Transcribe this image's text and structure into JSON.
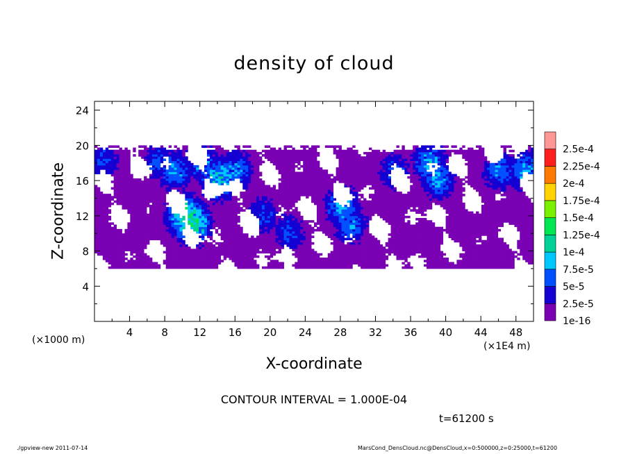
{
  "chart_data": {
    "type": "heatmap",
    "title": "density of cloud",
    "xlabel": "X-coordinate",
    "ylabel": "Z-coordinate",
    "x_unit_left": "(×1000 m)",
    "x_unit_right": "(×1E4 m)",
    "xlim": [
      0,
      50
    ],
    "ylim": [
      0,
      25
    ],
    "x_ticks": [
      4,
      8,
      12,
      16,
      20,
      24,
      28,
      32,
      36,
      40,
      44,
      48
    ],
    "y_ticks": [
      4,
      8,
      12,
      16,
      20,
      24
    ],
    "cloud_layer_z_range": [
      6,
      20
    ],
    "colorbar_levels": [
      "1e-16",
      "2.5e-5",
      "5e-5",
      "7.5e-5",
      "1e-4",
      "1.25e-4",
      "1.5e-4",
      "1.75e-4",
      "2e-4",
      "2.25e-4",
      "2.5e-4"
    ],
    "colorbar_colors": [
      "#7a00b4",
      "#1400d2",
      "#0050ff",
      "#00c8ff",
      "#00d296",
      "#00e650",
      "#78f000",
      "#ffd200",
      "#ff7800",
      "#ff1e1e",
      "#ff9696"
    ],
    "cells": [
      {
        "x": 1,
        "z": 18,
        "v": 6e-05
      },
      {
        "x": 7,
        "z": 18,
        "v": 6e-05
      },
      {
        "x": 9,
        "z": 17,
        "v": 8e-05
      },
      {
        "x": 10,
        "z": 12,
        "v": 0.00013
      },
      {
        "x": 11,
        "z": 11,
        "v": 0.00014
      },
      {
        "x": 12,
        "z": 18,
        "v": 8e-05
      },
      {
        "x": 14,
        "z": 16,
        "v": 0.00011
      },
      {
        "x": 16,
        "z": 17,
        "v": 8e-05
      },
      {
        "x": 19,
        "z": 12,
        "v": 6e-05
      },
      {
        "x": 22,
        "z": 10,
        "v": 6e-05
      },
      {
        "x": 28,
        "z": 13,
        "v": 9e-05
      },
      {
        "x": 29,
        "z": 11,
        "v": 8e-05
      },
      {
        "x": 34,
        "z": 17,
        "v": 6e-05
      },
      {
        "x": 38,
        "z": 18,
        "v": 9e-05
      },
      {
        "x": 39,
        "z": 16,
        "v": 8e-05
      },
      {
        "x": 46,
        "z": 17,
        "v": 8e-05
      },
      {
        "x": 49,
        "z": 17,
        "v": 9e-05
      }
    ]
  },
  "contour_interval": "CONTOUR INTERVAL = 1.000E-04",
  "time_label": "t=61200 s",
  "footer": {
    "left": "./gpview-new  2011-07-14",
    "right": "MarsCond_DensCloud.nc@DensCloud,x=0:500000,z=0:25000,t=61200"
  }
}
